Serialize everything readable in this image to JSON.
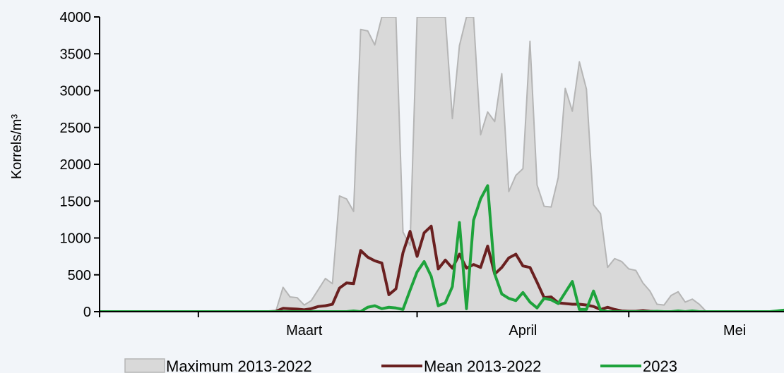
{
  "chart_data": {
    "type": "area",
    "title": "",
    "xlabel": "",
    "ylabel": "Korrels/m³",
    "ylim": [
      0,
      4000
    ],
    "yticks": [
      0,
      500,
      1000,
      1500,
      2000,
      2500,
      3000,
      3500,
      4000
    ],
    "x_start": "2023-02-15",
    "x_end": "2023-05-23",
    "x_month_boundaries": [
      "2023-03-01",
      "2023-04-01",
      "2023-05-01"
    ],
    "x_tick_labels": [
      {
        "label": "Maart",
        "date": "2023-03-16"
      },
      {
        "label": "April",
        "date": "2023-04-16"
      },
      {
        "label": "Mei",
        "date": "2023-05-16"
      }
    ],
    "grid": false,
    "legend": "bottom",
    "colors": {
      "background": "#f2f5f9",
      "max_fill": "#d9d9d9",
      "max_line": "#b5b5b5",
      "mean": "#6a2020",
      "y2023": "#1ea33c",
      "axis": "#000000"
    },
    "series": [
      {
        "name": "Maximum 2013-2022",
        "type": "area",
        "values": [
          0,
          0,
          0,
          0,
          0,
          0,
          0,
          0,
          0,
          0,
          0,
          0,
          0,
          0,
          0,
          0,
          0,
          0,
          0,
          0,
          0,
          0,
          0,
          0,
          0,
          10,
          330,
          200,
          190,
          90,
          150,
          300,
          450,
          380,
          1570,
          1530,
          1360,
          3830,
          3810,
          3620,
          4000,
          4000,
          4000,
          1080,
          900,
          4000,
          4000,
          4000,
          4000,
          4000,
          2620,
          3610,
          4000,
          4000,
          2400,
          2710,
          2580,
          3230,
          1630,
          1850,
          1940,
          3670,
          1720,
          1430,
          1420,
          1820,
          3030,
          2720,
          3390,
          3020,
          1450,
          1330,
          600,
          720,
          680,
          580,
          560,
          390,
          280,
          100,
          90,
          220,
          270,
          130,
          170,
          100,
          0,
          0,
          0,
          0,
          0,
          0,
          0,
          0,
          0,
          0,
          0,
          0
        ]
      },
      {
        "name": "Mean 2013-2022",
        "type": "line",
        "values": [
          0,
          0,
          0,
          0,
          0,
          0,
          0,
          0,
          0,
          0,
          0,
          0,
          0,
          0,
          0,
          0,
          0,
          0,
          0,
          0,
          0,
          0,
          0,
          0,
          0,
          5,
          45,
          40,
          35,
          25,
          40,
          70,
          80,
          100,
          320,
          390,
          380,
          830,
          740,
          690,
          660,
          230,
          310,
          800,
          1090,
          750,
          1070,
          1160,
          580,
          700,
          590,
          780,
          590,
          640,
          600,
          890,
          510,
          600,
          730,
          780,
          620,
          600,
          400,
          190,
          200,
          120,
          110,
          100,
          100,
          90,
          70,
          30,
          60,
          30,
          10,
          5,
          5,
          15,
          5,
          0,
          0,
          0,
          0,
          0,
          0,
          0,
          0,
          0,
          0,
          0,
          0,
          0,
          0,
          0,
          0,
          0,
          0,
          0
        ]
      },
      {
        "name": "2023",
        "type": "line",
        "values": [
          0,
          0,
          0,
          0,
          0,
          0,
          0,
          0,
          0,
          0,
          0,
          0,
          0,
          0,
          0,
          0,
          0,
          0,
          0,
          0,
          0,
          0,
          0,
          0,
          0,
          0,
          0,
          0,
          0,
          0,
          0,
          0,
          0,
          0,
          0,
          0,
          10,
          0,
          60,
          80,
          40,
          60,
          50,
          30,
          290,
          540,
          680,
          480,
          80,
          120,
          340,
          1210,
          40,
          1240,
          1530,
          1710,
          510,
          240,
          180,
          150,
          260,
          130,
          50,
          180,
          160,
          110,
          260,
          410,
          30,
          30,
          280,
          20,
          0,
          0,
          0,
          0,
          0,
          0,
          0,
          5,
          0,
          0,
          10,
          0,
          10,
          0,
          0,
          0,
          0,
          0,
          0,
          0,
          0,
          0,
          0,
          0,
          10,
          20
        ]
      }
    ]
  }
}
